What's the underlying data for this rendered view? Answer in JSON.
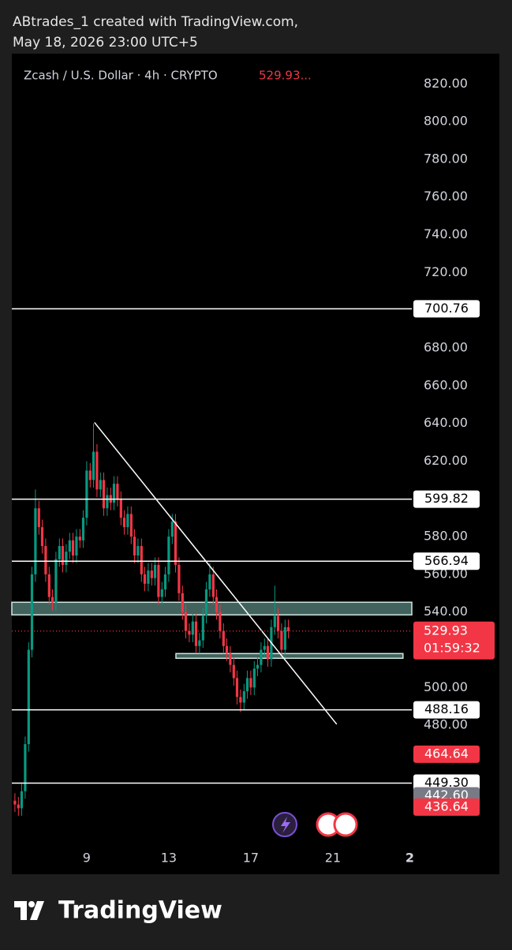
{
  "header": {
    "line1": "ABtrades_1 created with TradingView.com,",
    "line2": "May 18, 2026 23:00 UTC+5"
  },
  "footer": {
    "brand": "TradingView"
  },
  "chart_data": {
    "type": "candlestick",
    "title": "Zcash / U.S. Dollar · 4h · CRYPTO",
    "title_price": "529.93...",
    "up_color": "#089981",
    "down_color": "#f23645",
    "x": [
      5.5,
      5.67,
      5.83,
      6,
      6.17,
      6.33,
      6.5,
      6.67,
      6.83,
      7,
      7.17,
      7.33,
      7.5,
      7.67,
      7.83,
      8,
      8.17,
      8.33,
      8.5,
      8.67,
      8.83,
      9,
      9.17,
      9.33,
      9.5,
      9.67,
      9.83,
      10,
      10.17,
      10.33,
      10.5,
      10.67,
      10.83,
      11,
      11.17,
      11.33,
      11.5,
      11.67,
      11.83,
      12,
      12.17,
      12.33,
      12.5,
      12.67,
      12.83,
      13,
      13.17,
      13.33,
      13.5,
      13.67,
      13.83,
      14,
      14.17,
      14.33,
      14.5,
      14.67,
      14.83,
      15,
      15.17,
      15.33,
      15.5,
      15.67,
      15.83,
      16,
      16.17,
      16.33,
      16.5,
      16.67,
      16.83,
      17,
      17.17,
      17.33,
      17.5,
      17.67,
      17.83,
      18,
      18.17,
      18.33,
      18.5,
      18.67,
      18.83
    ],
    "open": [
      440,
      438,
      436,
      445,
      470,
      520,
      560,
      595,
      585,
      575,
      560,
      548,
      545,
      568,
      575,
      565,
      572,
      578,
      570,
      580,
      578,
      590,
      615,
      610,
      625,
      605,
      610,
      595,
      602,
      598,
      608,
      600,
      590,
      585,
      592,
      580,
      570,
      575,
      560,
      555,
      562,
      558,
      565,
      548,
      552,
      560,
      580,
      588,
      565,
      550,
      540,
      530,
      528,
      535,
      522,
      525,
      538,
      552,
      560,
      548,
      540,
      530,
      522,
      518,
      512,
      505,
      495,
      492,
      498,
      505,
      500,
      510,
      512,
      520,
      522,
      515,
      532,
      538,
      530,
      520,
      532
    ],
    "high": [
      444,
      442,
      449,
      474,
      524,
      564,
      605,
      599,
      589,
      579,
      564,
      552,
      572,
      579,
      579,
      576,
      582,
      582,
      584,
      584,
      594,
      620,
      619,
      640,
      629,
      614,
      614,
      606,
      606,
      612,
      612,
      604,
      594,
      596,
      596,
      584,
      579,
      579,
      564,
      566,
      566,
      569,
      569,
      556,
      564,
      584,
      592,
      592,
      569,
      554,
      544,
      534,
      539,
      539,
      529,
      542,
      556,
      566,
      564,
      552,
      544,
      534,
      526,
      522,
      516,
      509,
      499,
      502,
      509,
      509,
      514,
      516,
      524,
      526,
      526,
      536,
      554,
      542,
      534,
      536,
      536
    ],
    "low": [
      434,
      432,
      432,
      441,
      466,
      516,
      556,
      581,
      571,
      556,
      544,
      541,
      541,
      564,
      561,
      561,
      568,
      566,
      566,
      574,
      574,
      586,
      606,
      606,
      601,
      601,
      591,
      591,
      594,
      594,
      596,
      586,
      581,
      581,
      576,
      566,
      566,
      556,
      551,
      551,
      554,
      554,
      544,
      544,
      548,
      556,
      576,
      561,
      546,
      536,
      526,
      524,
      524,
      518,
      518,
      521,
      534,
      548,
      544,
      536,
      526,
      518,
      514,
      508,
      501,
      491,
      487,
      488,
      494,
      496,
      496,
      506,
      508,
      516,
      511,
      511,
      528,
      526,
      516,
      516,
      526
    ],
    "close": [
      438,
      436,
      445,
      470,
      520,
      560,
      595,
      585,
      575,
      560,
      548,
      545,
      568,
      575,
      565,
      572,
      578,
      570,
      580,
      578,
      590,
      615,
      610,
      625,
      605,
      610,
      595,
      602,
      598,
      608,
      600,
      590,
      585,
      592,
      580,
      570,
      575,
      560,
      555,
      562,
      558,
      565,
      548,
      552,
      560,
      580,
      588,
      565,
      550,
      540,
      530,
      528,
      535,
      522,
      525,
      538,
      552,
      560,
      548,
      540,
      530,
      522,
      518,
      512,
      505,
      495,
      492,
      498,
      505,
      500,
      510,
      512,
      520,
      522,
      515,
      532,
      538,
      530,
      520,
      532,
      529.93
    ],
    "xlim": [
      5.35,
      24.85
    ],
    "ylim": [
      419,
      836
    ],
    "xticks": [
      9,
      13,
      17,
      21,
      {
        "value": 24.75,
        "label": "2"
      }
    ],
    "yticks": [
      {
        "value": 480,
        "label": "480.00"
      },
      {
        "value": 500,
        "label": "500.00"
      },
      {
        "value": 540,
        "label": "540.00"
      },
      {
        "value": 560,
        "label": "560.00"
      },
      {
        "value": 580,
        "label": "580.00"
      },
      {
        "value": 600,
        "label": "600.00"
      },
      {
        "value": 620,
        "label": "620.00"
      },
      {
        "value": 640,
        "label": "640.00"
      },
      {
        "value": 660,
        "label": "660.00"
      },
      {
        "value": 680,
        "label": "680.00"
      },
      {
        "value": 700,
        "label": "700.00"
      },
      {
        "value": 720,
        "label": "720.00"
      },
      {
        "value": 740,
        "label": "740.00"
      },
      {
        "value": 760,
        "label": "760.00"
      },
      {
        "value": 780,
        "label": "780.00"
      },
      {
        "value": 800,
        "label": "800.00"
      },
      {
        "value": 820,
        "label": "820.00"
      }
    ],
    "levels": [
      700.76,
      599.82,
      566.94,
      488.16,
      {
        "value": 449.3,
        "label": "449.30"
      }
    ],
    "price_labels": [
      {
        "value": 464.64,
        "label": "464.64",
        "color": "#f23645"
      },
      {
        "value": 442.6,
        "label": "442.60",
        "color": "#787b86"
      },
      {
        "value": 436.64,
        "label": "436.64",
        "color": "#f23645"
      }
    ],
    "last_price": 529.93,
    "countdown": "01:59:32",
    "zones": [
      {
        "low": 538.5,
        "high": 545.2,
        "x0": 5.35,
        "x1": 24.85
      },
      {
        "low": 515.5,
        "high": 518,
        "x0": 13.35,
        "x1": 24.42
      }
    ],
    "trendline": {
      "x": [
        9.38,
        21.19
      ],
      "y": [
        640.5,
        480.5
      ]
    }
  }
}
